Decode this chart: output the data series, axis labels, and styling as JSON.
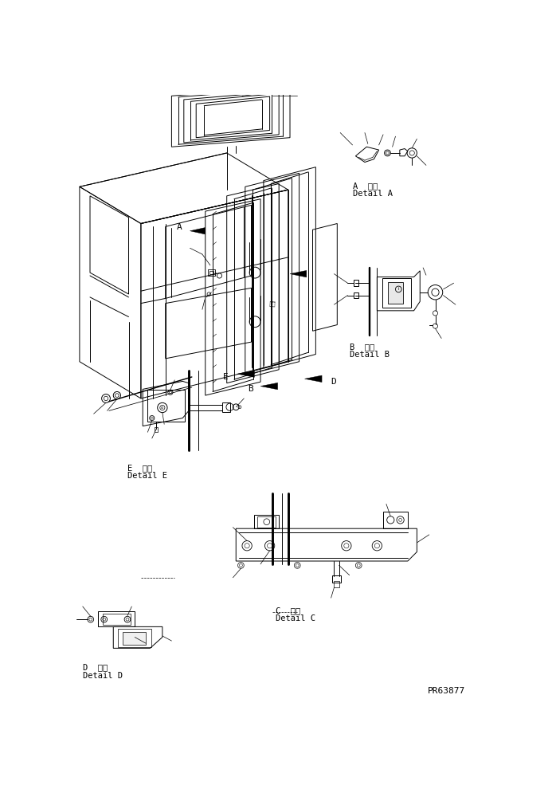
{
  "part_number": "PR63877",
  "background_color": "#ffffff",
  "line_color": "#000000",
  "lw": 0.7,
  "detail_A_label": "A 詳細\nDetail A",
  "detail_B_label": "B 詳細\nDetail B",
  "detail_C_label": "C 詳細\nDetail C",
  "detail_D_label": "D 詳細\nDetail D",
  "detail_E_label": "E 詳細\nDetail E"
}
